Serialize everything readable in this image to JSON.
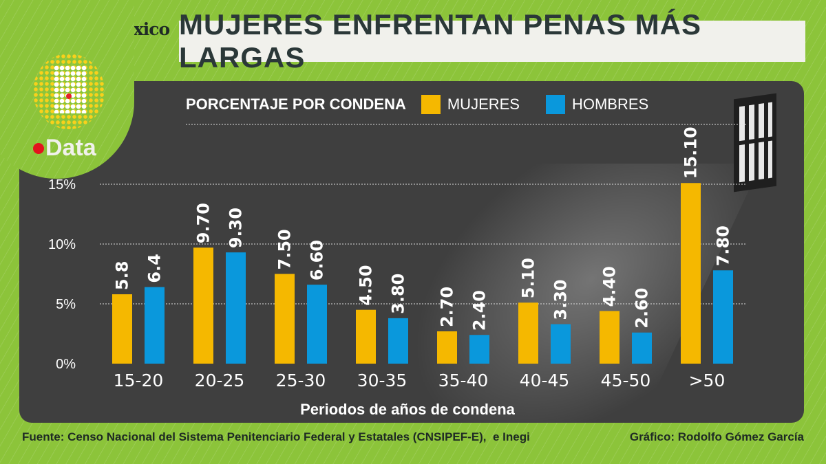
{
  "brand": "El Sol de México",
  "title": "MUJERES ENFRENTAN PENAS MÁS LARGAS",
  "logo_text": "Data",
  "legend": {
    "title": "PORCENTAJE POR CONDENA",
    "items": [
      "MUJERES",
      "HOMBRES"
    ]
  },
  "colors": {
    "mujeres": "#f5b800",
    "hombres": "#0a98dc",
    "background": "#8cc43a",
    "panel": "#3f3f3f"
  },
  "icons": [
    "jail-window-icon",
    "data-logo-icon"
  ],
  "chart_data": {
    "type": "bar",
    "title": "PORCENTAJE POR CONDENA",
    "xlabel": "Periodos de años de condena",
    "ylabel": "",
    "ylim": [
      0,
      15
    ],
    "yticks": [
      "0%",
      "5%",
      "10%",
      "15%"
    ],
    "grid": true,
    "legend_placement": "top",
    "categories": [
      "15-20",
      "20-25",
      "25-30",
      "30-35",
      "35-40",
      "40-45",
      "45-50",
      ">50"
    ],
    "series": [
      {
        "name": "MUJERES",
        "values": [
          5.8,
          9.7,
          7.5,
          4.5,
          2.7,
          5.1,
          4.4,
          15.1
        ],
        "labels": [
          "5.8",
          "9.70",
          "7.50",
          "4.50",
          "2.70",
          "5.10",
          "4.40",
          "15.10"
        ]
      },
      {
        "name": "HOMBRES",
        "values": [
          6.4,
          9.3,
          6.6,
          3.8,
          2.4,
          3.3,
          2.6,
          7.8
        ],
        "labels": [
          "6.4",
          "9.30",
          "6.60",
          "3.80",
          "2.40",
          "3.30",
          "2.60",
          "7.80"
        ]
      }
    ]
  },
  "footer": {
    "source": "Fuente: Censo Nacional del Sistema Penitenciario Federal y Estatales (CNSIPEF-E),  e Inegi",
    "credit": "Gráfico: Rodolfo Gómez García"
  }
}
